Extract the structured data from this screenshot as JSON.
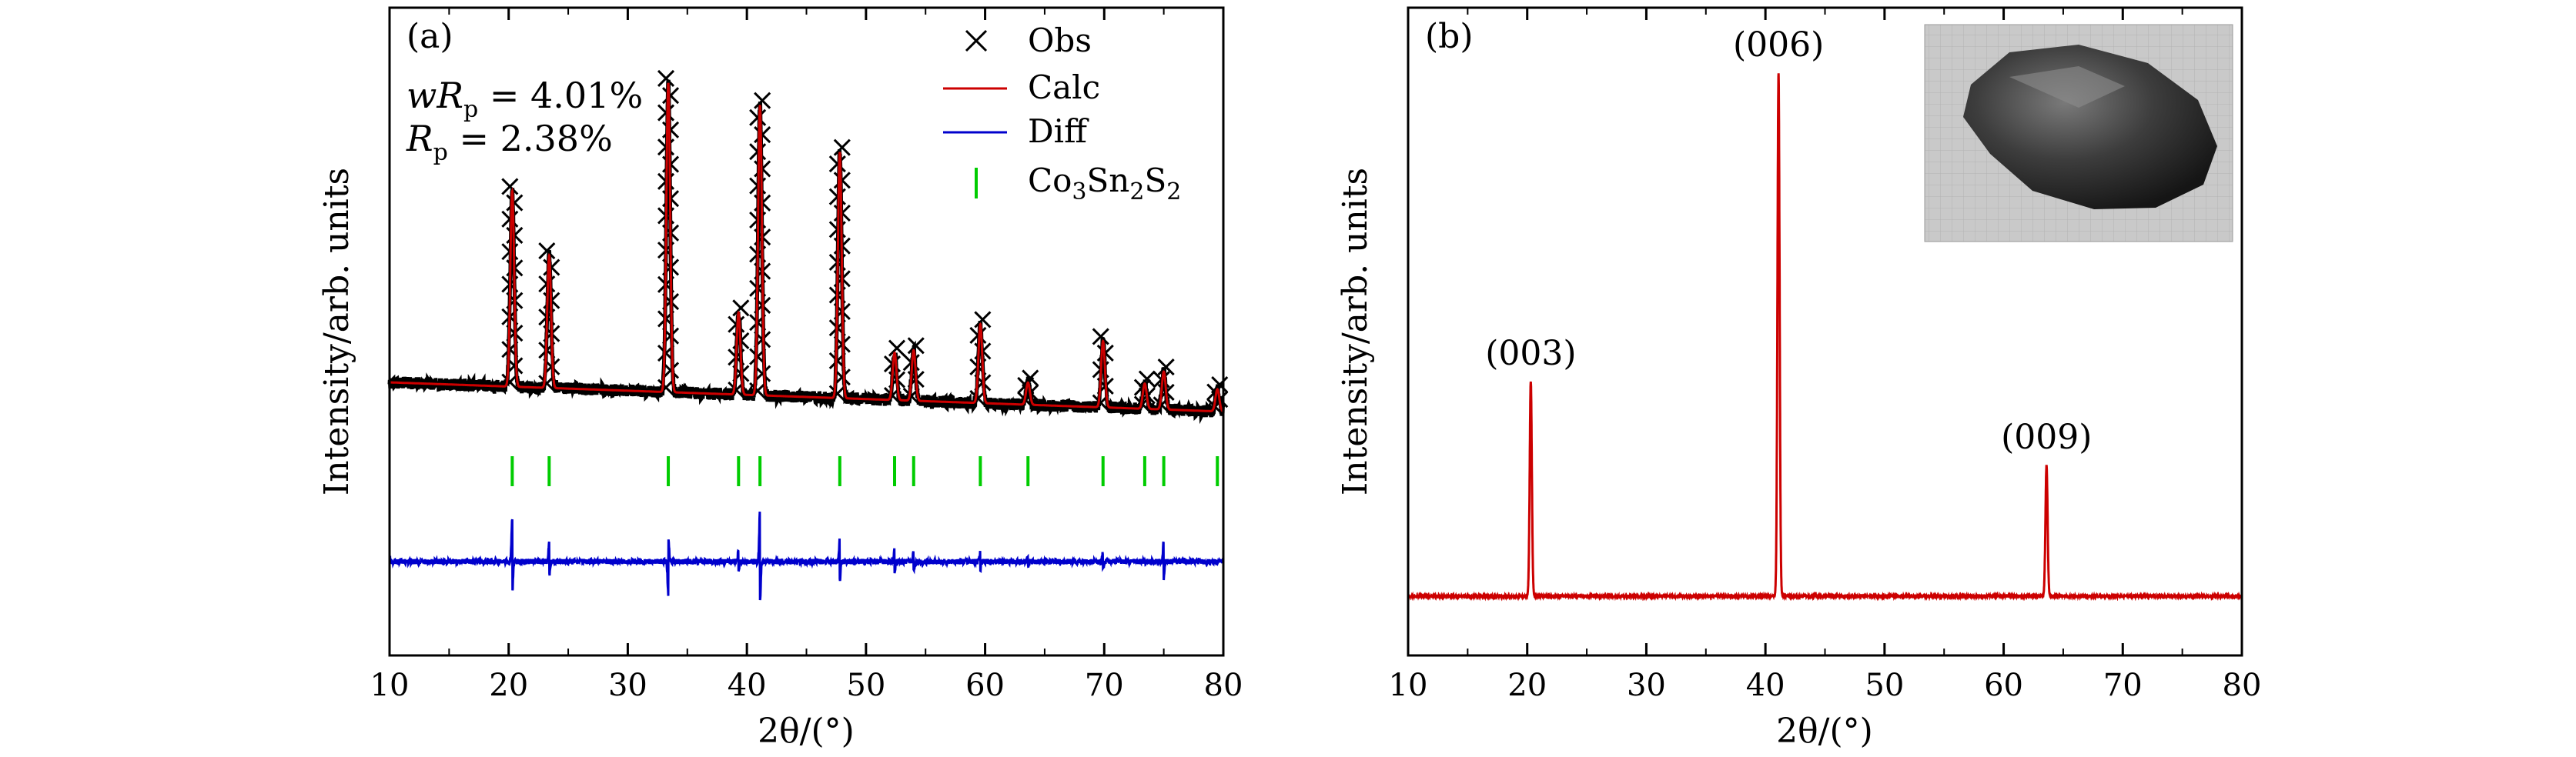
{
  "chart_data": [
    {
      "panel": "(a)",
      "type": "line",
      "xlabel": "2θ/(°)",
      "ylabel": "Intensity/arb. units",
      "xlim": [
        10,
        80
      ],
      "xticks": [
        10,
        20,
        30,
        40,
        50,
        60,
        70,
        80
      ],
      "annotations": [
        "wR_p = 4.01%",
        "R_p = 2.38%"
      ],
      "legend_position": "top-right",
      "colors": {
        "obs": "#000000",
        "calc": "#cc0000",
        "diff": "#0000cc",
        "bragg": "#00cc00"
      },
      "series": [
        {
          "name": "Obs",
          "style": "x-markers"
        },
        {
          "name": "Calc",
          "style": "line"
        },
        {
          "name": "Diff",
          "style": "line"
        },
        {
          "name": "Co3Sn2S2",
          "style": "ticks"
        }
      ],
      "peaks": [
        {
          "x": 20.3,
          "height": 0.62
        },
        {
          "x": 23.4,
          "height": 0.42
        },
        {
          "x": 33.4,
          "height": 0.98
        },
        {
          "x": 39.3,
          "height": 0.26
        },
        {
          "x": 41.1,
          "height": 0.92
        },
        {
          "x": 47.8,
          "height": 0.78
        },
        {
          "x": 52.4,
          "height": 0.15
        },
        {
          "x": 54.0,
          "height": 0.16
        },
        {
          "x": 59.6,
          "height": 0.25
        },
        {
          "x": 63.6,
          "height": 0.07
        },
        {
          "x": 69.9,
          "height": 0.21
        },
        {
          "x": 73.4,
          "height": 0.08
        },
        {
          "x": 75.0,
          "height": 0.12
        },
        {
          "x": 79.5,
          "height": 0.07
        }
      ],
      "bragg_positions": [
        20.3,
        23.4,
        33.4,
        39.3,
        41.1,
        47.8,
        52.4,
        54.0,
        59.6,
        63.6,
        69.9,
        73.4,
        75.0,
        79.5
      ],
      "diff_spikes": [
        {
          "x": 20.3,
          "amp": 0.18
        },
        {
          "x": 23.4,
          "amp": 0.08
        },
        {
          "x": 33.4,
          "amp": -0.14
        },
        {
          "x": 39.3,
          "amp": 0.05
        },
        {
          "x": 41.1,
          "amp": 0.22
        },
        {
          "x": 47.8,
          "amp": 0.1
        },
        {
          "x": 52.4,
          "amp": 0.06
        },
        {
          "x": 54.0,
          "amp": 0.05
        },
        {
          "x": 59.6,
          "amp": 0.04
        },
        {
          "x": 63.6,
          "amp": 0.03
        },
        {
          "x": 69.9,
          "amp": 0.04
        },
        {
          "x": 75.0,
          "amp": 0.09
        }
      ]
    },
    {
      "panel": "(b)",
      "type": "line",
      "xlabel": "2θ/(°)",
      "ylabel": "Intensity/arb. units",
      "xlim": [
        10,
        80
      ],
      "xticks": [
        10,
        20,
        30,
        40,
        50,
        60,
        70,
        80
      ],
      "colors": {
        "line": "#cc0000"
      },
      "peaks": [
        {
          "x": 20.3,
          "height": 0.41,
          "label": "(003)"
        },
        {
          "x": 41.1,
          "height": 1.0,
          "label": "(006)"
        },
        {
          "x": 63.6,
          "height": 0.25,
          "label": "(009)"
        }
      ],
      "inset": "photo of crystal"
    }
  ]
}
